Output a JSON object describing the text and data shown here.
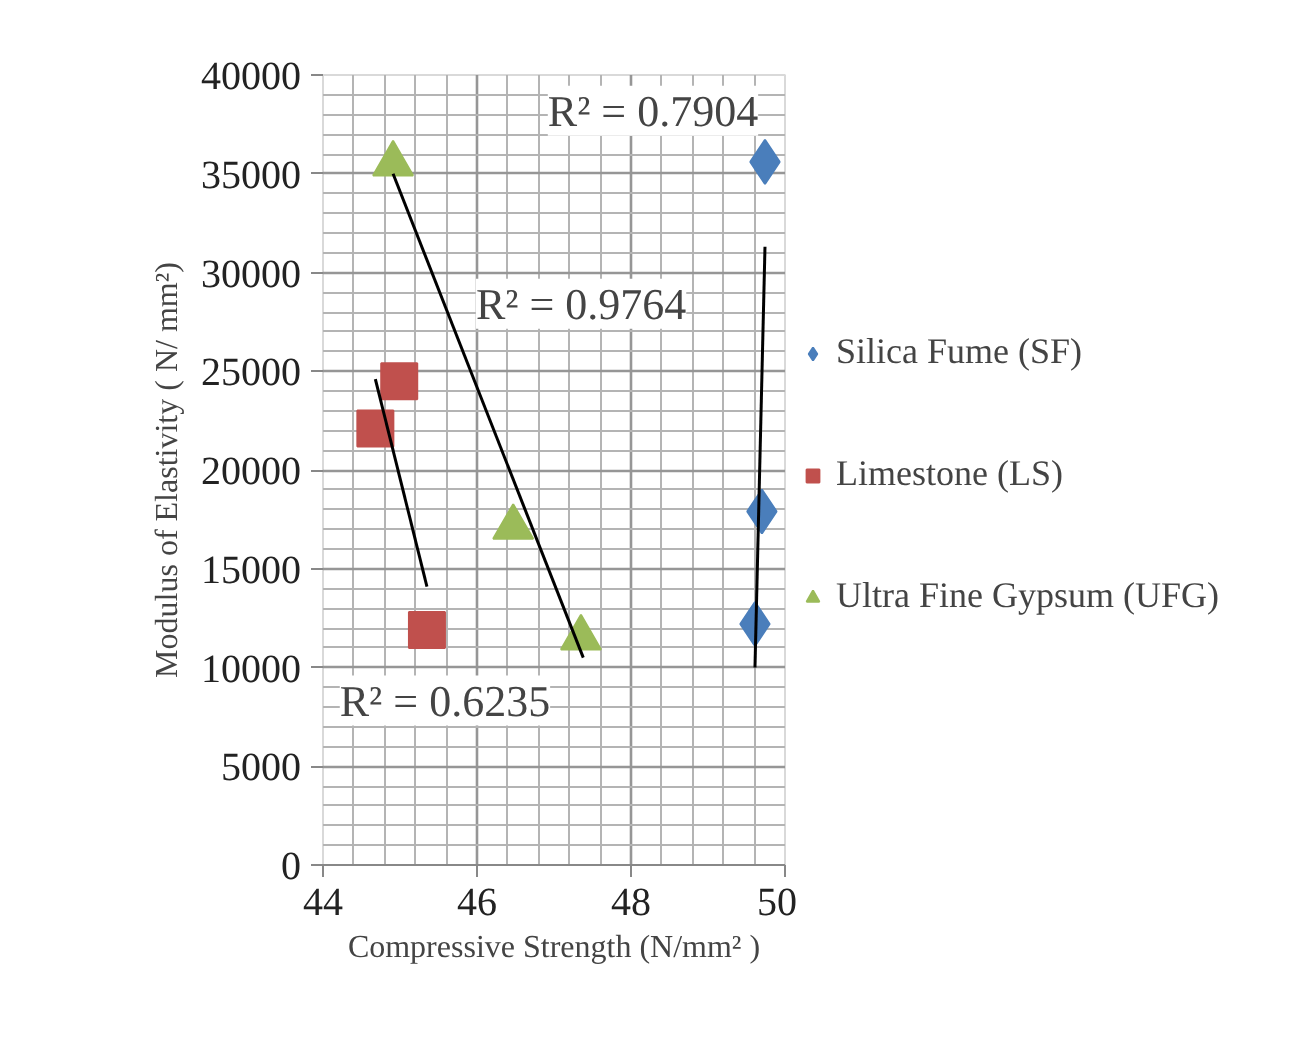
{
  "chart_data": {
    "type": "scatter",
    "xlabel": "Compressive Strength (N/mm² )",
    "ylabel": "Modulus of Elastivity ( N/ mm²)",
    "xlim": [
      44,
      50
    ],
    "xticks": [
      44,
      46,
      48,
      50
    ],
    "ylim": [
      0,
      40000
    ],
    "yticks": [
      0,
      5000,
      10000,
      15000,
      20000,
      25000,
      30000,
      35000,
      40000
    ],
    "grid": true,
    "legend": "right",
    "series": [
      {
        "name": "Silica Fume (SF)",
        "color": "#4a7ebb",
        "marker": "diamond",
        "x": [
          49.74,
          49.7,
          49.61
        ],
        "values": [
          35600,
          17900,
          12200
        ]
      },
      {
        "name": "Limestone (LS)",
        "color": "#c0504d",
        "marker": "square",
        "x": [
          44.68,
          44.99,
          45.35
        ],
        "values": [
          22100,
          24500,
          11900
        ]
      },
      {
        "name": "Ultra Fine Gypsum (UFG)",
        "color": "#9bbb59",
        "marker": "triangle",
        "x": [
          44.91,
          46.47,
          47.35
        ],
        "values": [
          35500,
          17100,
          11500
        ]
      },
      {
        "type": "line",
        "color": "#000000",
        "x": [
          49.74,
          49.61
        ],
        "values": [
          31300,
          10000
        ]
      },
      {
        "type": "line",
        "color": "#000000",
        "x": [
          44.68,
          45.35
        ],
        "values": [
          24600,
          14100
        ]
      },
      {
        "type": "line",
        "color": "#000000",
        "x": [
          44.91,
          47.38
        ],
        "values": [
          35000,
          10500
        ]
      }
    ],
    "annotations": [
      "R² = 0.7904",
      "R² = 0.6235",
      "R² = 0.9764"
    ]
  }
}
